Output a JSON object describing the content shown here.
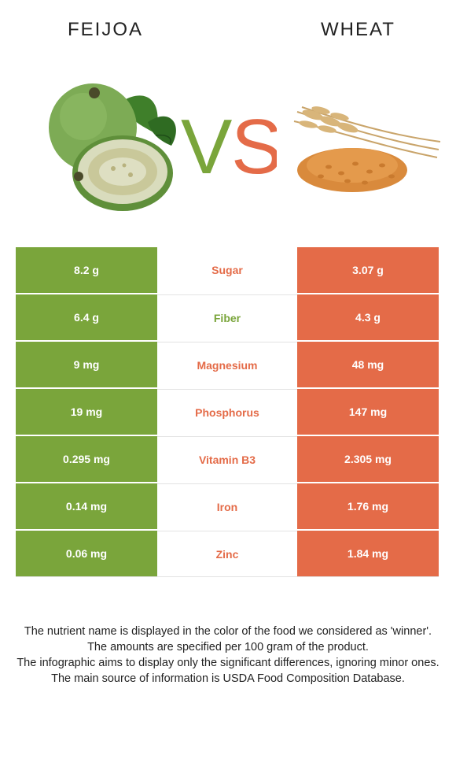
{
  "foods": {
    "left": {
      "name": "FEIJOA",
      "color": "#7aa53b",
      "illustration": "feijoa-fruit-illustration"
    },
    "right": {
      "name": "WHEAT",
      "color": "#e46b48",
      "illustration": "wheat-grain-illustration"
    }
  },
  "vs": {
    "v": "V",
    "s": "S"
  },
  "rows": [
    {
      "nutrient": "Sugar",
      "left": "8.2 g",
      "right": "3.07 g",
      "winner": "right"
    },
    {
      "nutrient": "Fiber",
      "left": "6.4 g",
      "right": "4.3 g",
      "winner": "left"
    },
    {
      "nutrient": "Magnesium",
      "left": "9 mg",
      "right": "48 mg",
      "winner": "right"
    },
    {
      "nutrient": "Phosphorus",
      "left": "19 mg",
      "right": "147 mg",
      "winner": "right"
    },
    {
      "nutrient": "Vitamin B3",
      "left": "0.295 mg",
      "right": "2.305 mg",
      "winner": "right"
    },
    {
      "nutrient": "Iron",
      "left": "0.14 mg",
      "right": "1.76 mg",
      "winner": "right"
    },
    {
      "nutrient": "Zinc",
      "left": "0.06 mg",
      "right": "1.84 mg",
      "winner": "right"
    }
  ],
  "footnotes": [
    "The nutrient name is displayed in the color of the food we considered as 'winner'.",
    "The amounts are specified per 100 gram of the product.",
    "The infographic aims to display only the significant differences, ignoring minor ones.",
    "The main source of information is USDA Food Composition Database."
  ]
}
